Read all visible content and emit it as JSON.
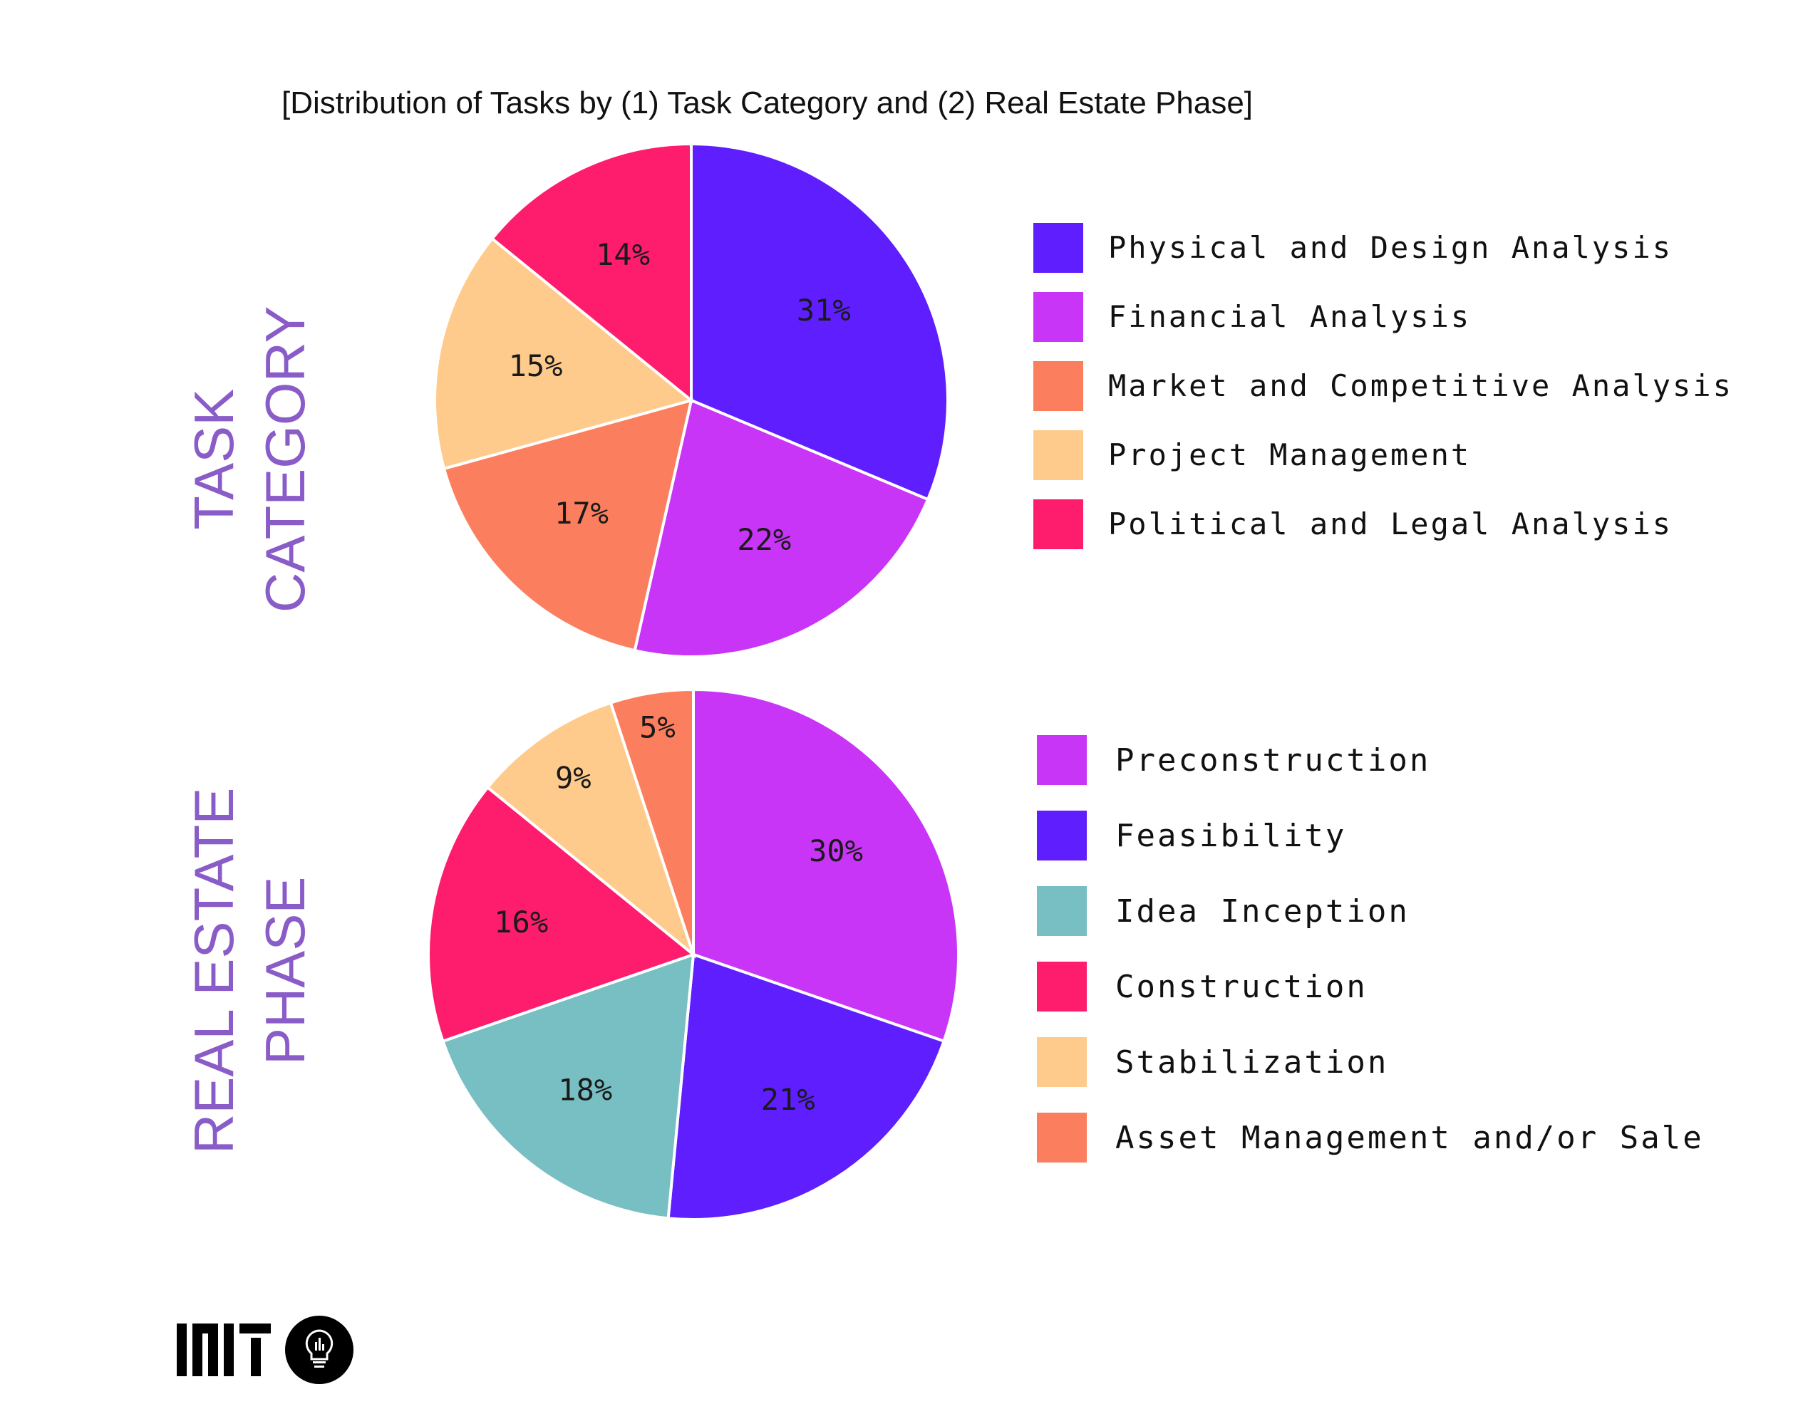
{
  "title": "[Distribution of Tasks by (1) Task Category and (2) Real Estate Phase]",
  "side_labels": {
    "task_category": [
      "TASK",
      "CATEGORY"
    ],
    "real_estate_phase": [
      "REAL ESTATE",
      "PHASE"
    ]
  },
  "logo": {
    "mark": "MIT",
    "icon": "lightbulb-chart-icon"
  },
  "chart_data": [
    {
      "type": "pie",
      "title": "TASK CATEGORY",
      "categories": [
        "Physical and Design Analysis",
        "Financial Analysis",
        "Market and Competitive Analysis",
        "Project Management",
        "Political and Legal Analysis"
      ],
      "values": [
        31,
        22,
        17,
        15,
        14
      ],
      "labels": [
        "31%",
        "22%",
        "17%",
        "15%",
        "14%"
      ],
      "colors": [
        "#5f1efd",
        "#c935f7",
        "#fb7f5e",
        "#fecb8c",
        "#fe1d6c"
      ],
      "legend": [
        "Physical and Design Analysis",
        "Financial Analysis",
        "Market and Competitive Analysis",
        "Project Management",
        "Political and Legal Analysis"
      ],
      "legend_position": "right"
    },
    {
      "type": "pie",
      "title": "REAL ESTATE PHASE",
      "categories": [
        "Preconstruction",
        "Feasibility",
        "Idea Inception",
        "Construction",
        "Stabilization",
        "Asset Management and/or Sale"
      ],
      "values": [
        30,
        21,
        18,
        16,
        9,
        5
      ],
      "labels": [
        "30%",
        "21%",
        "18%",
        "16%",
        "9%",
        "5%"
      ],
      "colors": [
        "#c935f7",
        "#5f1efd",
        "#77bfc3",
        "#fe1d6c",
        "#fecb8c",
        "#fb7f5e"
      ],
      "legend": [
        "Preconstruction",
        "Feasibility",
        "Idea Inception",
        "Construction",
        "Stabilization",
        "Asset Management and/or Sale"
      ],
      "legend_position": "right"
    }
  ]
}
